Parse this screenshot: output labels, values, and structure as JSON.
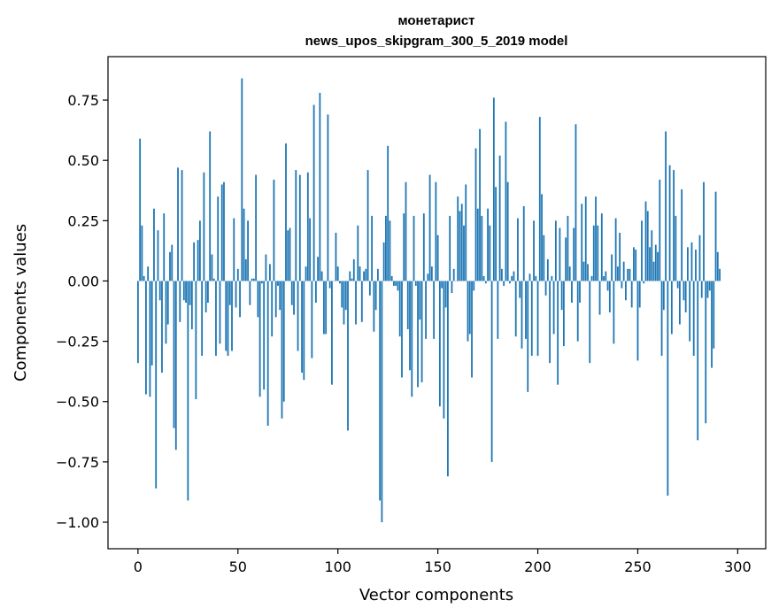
{
  "chart_data": {
    "type": "bar",
    "title": "монетарист",
    "subtitle": "news_upos_skipgram_300_5_2019 model",
    "xlabel": "Vector components",
    "ylabel": "Components values",
    "xlim": [
      -15,
      314
    ],
    "ylim": [
      -1.11,
      0.93
    ],
    "x_ticks": [
      0,
      50,
      100,
      150,
      200,
      250,
      300
    ],
    "x_tick_labels": [
      "0",
      "50",
      "100",
      "150",
      "200",
      "250",
      "300"
    ],
    "y_ticks": [
      0.75,
      0.5,
      0.25,
      0.0,
      -0.25,
      -0.5,
      -0.75,
      -1.0
    ],
    "y_tick_labels": [
      "0.75",
      "0.50",
      "0.25",
      "0.00",
      "−0.25",
      "−0.50",
      "−0.75",
      "−1.00"
    ],
    "grid": false,
    "bar_color": "#1f77b4",
    "values": [
      -0.34,
      0.59,
      0.23,
      0.02,
      -0.47,
      0.06,
      -0.48,
      -0.35,
      0.3,
      -0.86,
      0.21,
      -0.08,
      -0.38,
      0.28,
      -0.26,
      -0.18,
      0.12,
      0.15,
      -0.61,
      -0.7,
      0.47,
      -0.17,
      0.46,
      -0.08,
      -0.09,
      -0.91,
      -0.1,
      -0.2,
      0.16,
      -0.49,
      0.17,
      0.25,
      -0.31,
      0.45,
      -0.13,
      -0.09,
      0.62,
      0.11,
      0.01,
      -0.31,
      0.35,
      -0.26,
      0.4,
      0.41,
      -0.29,
      -0.31,
      -0.1,
      -0.29,
      0.26,
      -0.11,
      0.05,
      -0.15,
      0.84,
      0.3,
      0.09,
      0.25,
      -0.1,
      0.01,
      0.01,
      0.44,
      -0.15,
      -0.48,
      -0.01,
      -0.45,
      0.11,
      -0.6,
      0.07,
      -0.23,
      0.42,
      -0.15,
      -0.02,
      -0.12,
      -0.57,
      -0.5,
      0.57,
      0.21,
      0.22,
      -0.1,
      -0.14,
      0.46,
      -0.29,
      0.44,
      -0.38,
      -0.41,
      0.06,
      0.45,
      0.26,
      -0.32,
      0.73,
      -0.09,
      0.1,
      0.78,
      0.04,
      -0.22,
      -0.22,
      0.69,
      -0.03,
      -0.43,
      0.0,
      0.2,
      0.06,
      -0.01,
      -0.11,
      -0.18,
      -0.12,
      -0.62,
      0.04,
      0.01,
      0.09,
      -0.18,
      0.23,
      0.06,
      -0.17,
      0.04,
      0.05,
      0.46,
      -0.06,
      0.27,
      -0.21,
      -0.12,
      0.05,
      -0.91,
      -1.0,
      0.16,
      0.27,
      0.56,
      0.25,
      0.02,
      -0.02,
      -0.02,
      -0.04,
      -0.23,
      -0.4,
      0.28,
      0.41,
      -0.2,
      -0.37,
      -0.48,
      0.27,
      -0.02,
      -0.44,
      -0.16,
      -0.42,
      0.28,
      -0.24,
      0.03,
      0.44,
      0.06,
      -0.24,
      0.41,
      0.19,
      -0.52,
      -0.03,
      -0.57,
      -0.11,
      -0.81,
      0.27,
      -0.05,
      0.05,
      0.0,
      0.35,
      0.29,
      0.32,
      0.23,
      0.4,
      -0.25,
      -0.22,
      -0.4,
      -0.04,
      0.55,
      0.3,
      0.63,
      0.27,
      0.02,
      -0.01,
      0.3,
      0.23,
      -0.75,
      0.76,
      0.39,
      -0.24,
      0.52,
      0.05,
      -0.02,
      0.66,
      0.41,
      -0.01,
      0.02,
      0.04,
      -0.23,
      0.26,
      -0.07,
      -0.28,
      0.31,
      -0.24,
      -0.46,
      0.03,
      -0.31,
      0.25,
      0.02,
      -0.31,
      0.68,
      0.36,
      0.19,
      -0.06,
      0.09,
      -0.34,
      0.02,
      -0.22,
      0.25,
      -0.43,
      0.22,
      -0.12,
      -0.27,
      0.18,
      0.27,
      0.06,
      -0.09,
      0.22,
      0.65,
      -0.25,
      -0.09,
      0.32,
      0.08,
      0.35,
      0.07,
      -0.34,
      0.02,
      0.23,
      0.35,
      0.23,
      -0.14,
      0.28,
      0.02,
      0.04,
      -0.04,
      -0.13,
      0.11,
      -0.26,
      0.26,
      0.06,
      0.2,
      -0.03,
      0.08,
      -0.08,
      0.05,
      0.05,
      -0.11,
      0.14,
      0.13,
      -0.33,
      -0.11,
      0.25,
      -0.01,
      0.33,
      0.29,
      0.14,
      0.21,
      0.08,
      0.15,
      0.12,
      0.42,
      -0.31,
      -0.12,
      0.62,
      -0.89,
      0.48,
      -0.22,
      0.46,
      0.27,
      -0.03,
      -0.18,
      0.38,
      -0.08,
      -0.13,
      0.14,
      -0.25,
      0.16,
      -0.31,
      0.13,
      -0.66,
      0.19,
      -0.07,
      0.41,
      -0.59,
      -0.07,
      -0.04,
      -0.36,
      -0.28,
      0.37,
      0.12,
      0.05
    ]
  }
}
